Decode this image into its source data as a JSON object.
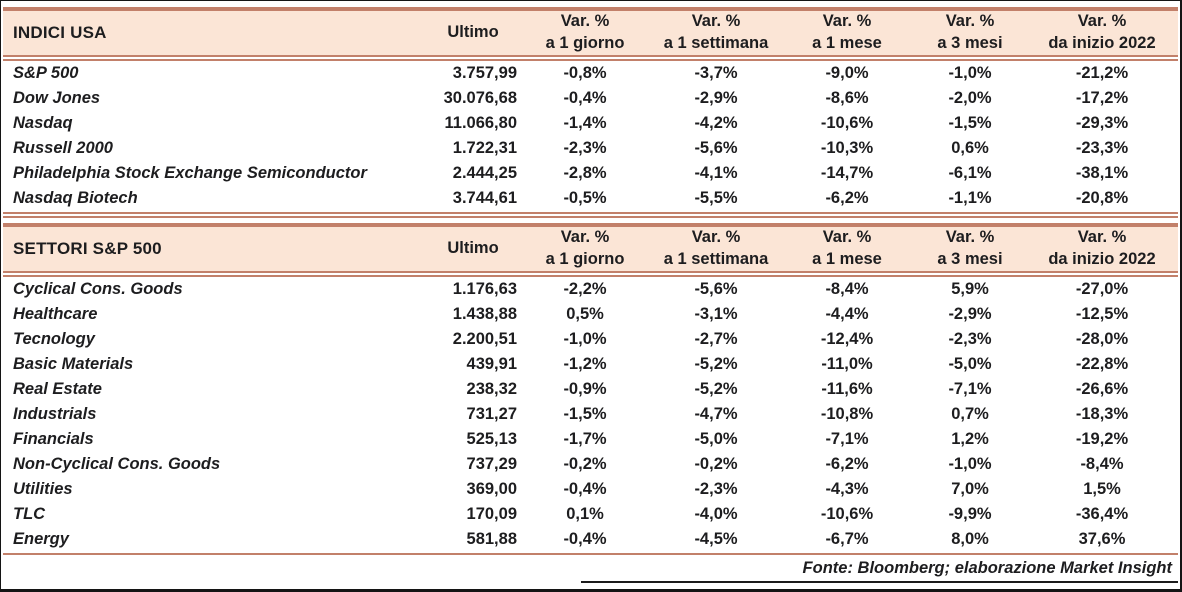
{
  "colors": {
    "band_bg": "#fbe5d6",
    "line": "#c2806a",
    "text": "#1d1d1f",
    "frame": "#141414"
  },
  "columns": {
    "ultimo": "Ultimo",
    "var_label": "Var. %",
    "sub": [
      "a 1 giorno",
      "a 1 settimana",
      "a 1 mese",
      "a 3 mesi",
      "da inizio 2022"
    ]
  },
  "sections": [
    {
      "title": "INDICI USA",
      "end_line": "double",
      "rows": [
        {
          "name": "S&P 500",
          "ultimo": "3.757,99",
          "vars": [
            "-0,8%",
            "-3,7%",
            "-9,0%",
            "-1,0%",
            "-21,2%"
          ]
        },
        {
          "name": "Dow Jones",
          "ultimo": "30.076,68",
          "vars": [
            "-0,4%",
            "-2,9%",
            "-8,6%",
            "-2,0%",
            "-17,2%"
          ]
        },
        {
          "name": "Nasdaq",
          "ultimo": "11.066,80",
          "vars": [
            "-1,4%",
            "-4,2%",
            "-10,6%",
            "-1,5%",
            "-29,3%"
          ]
        },
        {
          "name": "Russell 2000",
          "ultimo": "1.722,31",
          "vars": [
            "-2,3%",
            "-5,6%",
            "-10,3%",
            "0,6%",
            "-23,3%"
          ]
        },
        {
          "name": "Philadelphia Stock Exchange Semiconductor",
          "ultimo": "2.444,25",
          "vars": [
            "-2,8%",
            "-4,1%",
            "-14,7%",
            "-6,1%",
            "-38,1%"
          ]
        },
        {
          "name": "Nasdaq Biotech",
          "ultimo": "3.744,61",
          "vars": [
            "-0,5%",
            "-5,5%",
            "-6,2%",
            "-1,1%",
            "-20,8%"
          ]
        }
      ]
    },
    {
      "title": "SETTORI S&P 500",
      "end_line": "single",
      "rows": [
        {
          "name": "Cyclical Cons. Goods",
          "ultimo": "1.176,63",
          "vars": [
            "-2,2%",
            "-5,6%",
            "-8,4%",
            "5,9%",
            "-27,0%"
          ]
        },
        {
          "name": "Healthcare",
          "ultimo": "1.438,88",
          "vars": [
            "0,5%",
            "-3,1%",
            "-4,4%",
            "-2,9%",
            "-12,5%"
          ]
        },
        {
          "name": "Tecnology",
          "ultimo": "2.200,51",
          "vars": [
            "-1,0%",
            "-2,7%",
            "-12,4%",
            "-2,3%",
            "-28,0%"
          ]
        },
        {
          "name": "Basic Materials",
          "ultimo": "439,91",
          "vars": [
            "-1,2%",
            "-5,2%",
            "-11,0%",
            "-5,0%",
            "-22,8%"
          ]
        },
        {
          "name": "Real Estate",
          "ultimo": "238,32",
          "vars": [
            "-0,9%",
            "-5,2%",
            "-11,6%",
            "-7,1%",
            "-26,6%"
          ]
        },
        {
          "name": "Industrials",
          "ultimo": "731,27",
          "vars": [
            "-1,5%",
            "-4,7%",
            "-10,8%",
            "0,7%",
            "-18,3%"
          ]
        },
        {
          "name": "Financials",
          "ultimo": "525,13",
          "vars": [
            "-1,7%",
            "-5,0%",
            "-7,1%",
            "1,2%",
            "-19,2%"
          ]
        },
        {
          "name": "Non-Cyclical Cons. Goods",
          "ultimo": "737,29",
          "vars": [
            "-0,2%",
            "-0,2%",
            "-6,2%",
            "-1,0%",
            "-8,4%"
          ]
        },
        {
          "name": "Utilities",
          "ultimo": "369,00",
          "vars": [
            "-0,4%",
            "-2,3%",
            "-4,3%",
            "7,0%",
            "1,5%"
          ]
        },
        {
          "name": "TLC",
          "ultimo": "170,09",
          "vars": [
            "0,1%",
            "-4,0%",
            "-10,6%",
            "-9,9%",
            "-36,4%"
          ]
        },
        {
          "name": "Energy",
          "ultimo": "581,88",
          "vars": [
            "-0,4%",
            "-4,5%",
            "-6,7%",
            "8,0%",
            "37,6%"
          ]
        }
      ]
    }
  ],
  "footer": {
    "source": "Fonte: Bloomberg; elaborazione Market Insight"
  },
  "chart_data": [
    {
      "type": "table",
      "title": "INDICI USA",
      "columns": [
        "INDICI USA",
        "Ultimo",
        "Var. % a 1 giorno",
        "Var. % a 1 settimana",
        "Var. % a 1 mese",
        "Var. % a 3 mesi",
        "Var. % da inizio 2022"
      ],
      "rows": [
        [
          "S&P 500",
          "3.757,99",
          "-0,8%",
          "-3,7%",
          "-9,0%",
          "-1,0%",
          "-21,2%"
        ],
        [
          "Dow Jones",
          "30.076,68",
          "-0,4%",
          "-2,9%",
          "-8,6%",
          "-2,0%",
          "-17,2%"
        ],
        [
          "Nasdaq",
          "11.066,80",
          "-1,4%",
          "-4,2%",
          "-10,6%",
          "-1,5%",
          "-29,3%"
        ],
        [
          "Russell 2000",
          "1.722,31",
          "-2,3%",
          "-5,6%",
          "-10,3%",
          "0,6%",
          "-23,3%"
        ],
        [
          "Philadelphia Stock Exchange Semiconductor",
          "2.444,25",
          "-2,8%",
          "-4,1%",
          "-14,7%",
          "-6,1%",
          "-38,1%"
        ],
        [
          "Nasdaq Biotech",
          "3.744,61",
          "-0,5%",
          "-5,5%",
          "-6,2%",
          "-1,1%",
          "-20,8%"
        ]
      ]
    },
    {
      "type": "table",
      "title": "SETTORI S&P 500",
      "columns": [
        "SETTORI S&P 500",
        "Ultimo",
        "Var. % a 1 giorno",
        "Var. % a 1 settimana",
        "Var. % a 1 mese",
        "Var. % a 3 mesi",
        "Var. % da inizio 2022"
      ],
      "rows": [
        [
          "Cyclical Cons. Goods",
          "1.176,63",
          "-2,2%",
          "-5,6%",
          "-8,4%",
          "5,9%",
          "-27,0%"
        ],
        [
          "Healthcare",
          "1.438,88",
          "0,5%",
          "-3,1%",
          "-4,4%",
          "-2,9%",
          "-12,5%"
        ],
        [
          "Tecnology",
          "2.200,51",
          "-1,0%",
          "-2,7%",
          "-12,4%",
          "-2,3%",
          "-28,0%"
        ],
        [
          "Basic Materials",
          "439,91",
          "-1,2%",
          "-5,2%",
          "-11,0%",
          "-5,0%",
          "-22,8%"
        ],
        [
          "Real Estate",
          "238,32",
          "-0,9%",
          "-5,2%",
          "-11,6%",
          "-7,1%",
          "-26,6%"
        ],
        [
          "Industrials",
          "731,27",
          "-1,5%",
          "-4,7%",
          "-10,8%",
          "0,7%",
          "-18,3%"
        ],
        [
          "Financials",
          "525,13",
          "-1,7%",
          "-5,0%",
          "-7,1%",
          "1,2%",
          "-19,2%"
        ],
        [
          "Non-Cyclical Cons. Goods",
          "737,29",
          "-0,2%",
          "-0,2%",
          "-6,2%",
          "-1,0%",
          "-8,4%"
        ],
        [
          "Utilities",
          "369,00",
          "-0,4%",
          "-2,3%",
          "-4,3%",
          "7,0%",
          "1,5%"
        ],
        [
          "TLC",
          "170,09",
          "0,1%",
          "-4,0%",
          "-10,6%",
          "-9,9%",
          "-36,4%"
        ],
        [
          "Energy",
          "581,88",
          "-0,4%",
          "-4,5%",
          "-6,7%",
          "8,0%",
          "37,6%"
        ]
      ]
    }
  ]
}
